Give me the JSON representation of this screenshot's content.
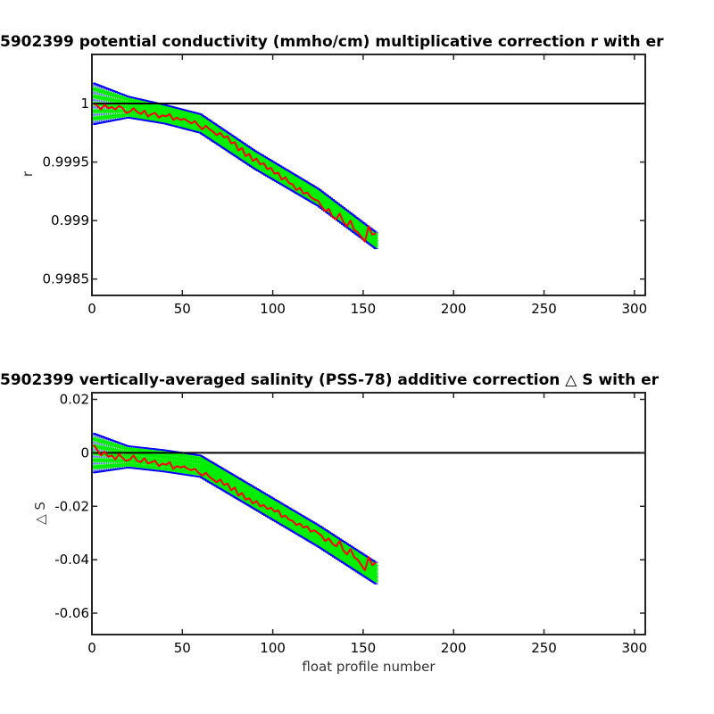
{
  "chart_data": [
    {
      "type": "line",
      "title": "5902399 potential conductivity (mmho/cm) multiplicative correction r with er",
      "xlabel": "",
      "ylabel": "r",
      "xlim": [
        0,
        306
      ],
      "ylim": [
        0.99836,
        1.00042
      ],
      "xticks": [
        0,
        50,
        100,
        150,
        200,
        250,
        300
      ],
      "yticks": [
        0.9985,
        0.999,
        0.9995,
        1
      ],
      "ytick_labels": [
        "0.9985",
        "0.999",
        "0.9995",
        "1"
      ],
      "reference_line": 1.0,
      "grid": false,
      "colors": {
        "envelope": "#0000ff",
        "points": "#00ee00",
        "series": "#ff0000",
        "reference": "#000000"
      },
      "fit": {
        "x": [
          0,
          20,
          40,
          60,
          90,
          125,
          157
        ],
        "y": [
          1.0,
          0.99997,
          0.99991,
          0.99983,
          0.99952,
          0.9992,
          0.99883
        ]
      },
      "error_halfwidth": {
        "x": [
          0,
          20,
          40,
          60,
          157
        ],
        "y": [
          0.00018,
          9e-05,
          8e-05,
          8e-05,
          7e-05
        ]
      },
      "series": [
        {
          "x": [
            1,
            3,
            5,
            7,
            9,
            11,
            13,
            15,
            17,
            19,
            21,
            23,
            25,
            27,
            29,
            31,
            33,
            35,
            37,
            39,
            41,
            43,
            45,
            47,
            49,
            51,
            53,
            55,
            57,
            59,
            61,
            63,
            65,
            67,
            69,
            71,
            73,
            75,
            77,
            79,
            81,
            83,
            85,
            87,
            89,
            91,
            93,
            95,
            97,
            99,
            101,
            103,
            105,
            107,
            109,
            111,
            113,
            115,
            117,
            119,
            121,
            123,
            125,
            127,
            129,
            131,
            133,
            135,
            137,
            139,
            141,
            143,
            145,
            147,
            149,
            151,
            153,
            155,
            157
          ],
          "values": [
            1.0,
            0.99998,
            0.99995,
            0.99999,
            0.99996,
            0.99997,
            0.99995,
            0.99998,
            0.99996,
            0.99992,
            0.99993,
            0.99996,
            0.99993,
            0.99991,
            0.99994,
            0.99989,
            0.99991,
            0.99992,
            0.99988,
            0.9999,
            0.99989,
            0.99991,
            0.99986,
            0.99988,
            0.99986,
            0.99987,
            0.99985,
            0.99983,
            0.99985,
            0.99981,
            0.99978,
            0.99981,
            0.99978,
            0.99976,
            0.99973,
            0.99975,
            0.99971,
            0.99972,
            0.99966,
            0.99967,
            0.9996,
            0.99962,
            0.99955,
            0.99957,
            0.99951,
            0.99953,
            0.99948,
            0.99949,
            0.99944,
            0.99945,
            0.9994,
            0.99941,
            0.99935,
            0.99937,
            0.99932,
            0.99931,
            0.99926,
            0.99928,
            0.99923,
            0.99924,
            0.9992,
            0.99918,
            0.99917,
            0.99912,
            0.99908,
            0.9991,
            0.99903,
            0.99901,
            0.99906,
            0.99899,
            0.99895,
            0.999,
            0.99892,
            0.9989,
            0.99886,
            0.99882,
            0.99895,
            0.99888,
            0.99889
          ]
        }
      ]
    },
    {
      "type": "line",
      "title": "5902399 vertically-averaged salinity (PSS-78) additive correction △ S with er",
      "xlabel": "float profile number",
      "ylabel": "△ S",
      "xlim": [
        0,
        306
      ],
      "ylim": [
        -0.068,
        0.0225
      ],
      "xticks": [
        0,
        50,
        100,
        150,
        200,
        250,
        300
      ],
      "yticks": [
        -0.06,
        -0.04,
        -0.02,
        0,
        0.02
      ],
      "ytick_labels": [
        "-0.06",
        "-0.04",
        "-0.02",
        "0",
        "0.02"
      ],
      "reference_line": 0,
      "grid": false,
      "colors": {
        "envelope": "#0000ff",
        "points": "#00ee00",
        "series": "#ff0000",
        "reference": "#000000"
      },
      "fit": {
        "x": [
          0,
          20,
          40,
          60,
          90,
          125,
          157
        ],
        "y": [
          0.0,
          -0.0015,
          -0.003,
          -0.005,
          -0.017,
          -0.031,
          -0.045
        ]
      },
      "error_halfwidth": {
        "x": [
          0,
          20,
          40,
          60,
          157
        ],
        "y": [
          0.0075,
          0.004,
          0.004,
          0.004,
          0.004
        ]
      },
      "series": [
        {
          "x": [
            1,
            3,
            5,
            7,
            9,
            11,
            13,
            15,
            17,
            19,
            21,
            23,
            25,
            27,
            29,
            31,
            33,
            35,
            37,
            39,
            41,
            43,
            45,
            47,
            49,
            51,
            53,
            55,
            57,
            59,
            61,
            63,
            65,
            67,
            69,
            71,
            73,
            75,
            77,
            79,
            81,
            83,
            85,
            87,
            89,
            91,
            93,
            95,
            97,
            99,
            101,
            103,
            105,
            107,
            109,
            111,
            113,
            115,
            117,
            119,
            121,
            123,
            125,
            127,
            129,
            131,
            133,
            135,
            137,
            139,
            141,
            143,
            145,
            147,
            149,
            151,
            153,
            155,
            157
          ],
          "values": [
            0.003,
            0.001,
            -0.001,
            0.0005,
            -0.0015,
            -0.001,
            -0.0025,
            -0.0005,
            -0.002,
            -0.003,
            -0.0025,
            -0.001,
            -0.003,
            -0.0035,
            -0.002,
            -0.004,
            -0.0035,
            -0.003,
            -0.005,
            -0.004,
            -0.0045,
            -0.0035,
            -0.006,
            -0.005,
            -0.0055,
            -0.005,
            -0.006,
            -0.0065,
            -0.006,
            -0.0075,
            -0.0085,
            -0.0075,
            -0.009,
            -0.01,
            -0.011,
            -0.01,
            -0.012,
            -0.0115,
            -0.014,
            -0.013,
            -0.016,
            -0.015,
            -0.0175,
            -0.017,
            -0.019,
            -0.018,
            -0.02,
            -0.0195,
            -0.021,
            -0.0205,
            -0.022,
            -0.0215,
            -0.024,
            -0.0235,
            -0.025,
            -0.0255,
            -0.027,
            -0.0265,
            -0.028,
            -0.0275,
            -0.0295,
            -0.029,
            -0.03,
            -0.031,
            -0.033,
            -0.032,
            -0.034,
            -0.035,
            -0.033,
            -0.0365,
            -0.038,
            -0.036,
            -0.039,
            -0.04,
            -0.042,
            -0.044,
            -0.039,
            -0.042,
            -0.041
          ]
        }
      ]
    }
  ]
}
